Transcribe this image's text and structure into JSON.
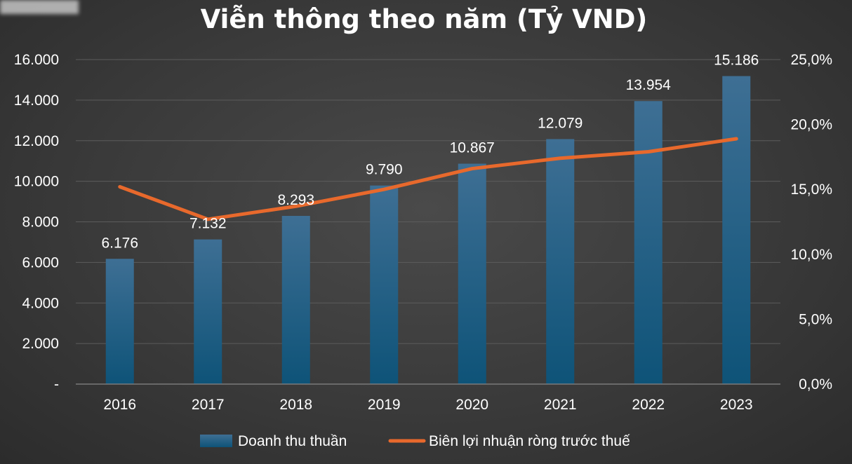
{
  "chart_data": {
    "type": "bar",
    "title": "Viễn thông theo năm (Tỷ VND)",
    "categories": [
      "2016",
      "2017",
      "2018",
      "2019",
      "2020",
      "2021",
      "2022",
      "2023"
    ],
    "series": [
      {
        "name": "Doanh thu thuần",
        "type": "bar",
        "axis": "left",
        "values": [
          6176,
          7132,
          8293,
          9790,
          10867,
          12079,
          13954,
          15186
        ],
        "labels": [
          "6.176",
          "7.132",
          "8.293",
          "9.790",
          "10.867",
          "12.079",
          "13.954",
          "15.186"
        ]
      },
      {
        "name": "Biên lợi nhuận ròng trước thuế",
        "type": "line",
        "axis": "right",
        "values": [
          15.2,
          12.7,
          13.7,
          15.0,
          16.6,
          17.4,
          17.9,
          18.9
        ]
      }
    ],
    "y_left": {
      "ylim": [
        0,
        16000
      ],
      "ticks": [
        0,
        2000,
        4000,
        6000,
        8000,
        10000,
        12000,
        14000,
        16000
      ],
      "tick_labels": [
        "-",
        "2.000",
        "4.000",
        "6.000",
        "8.000",
        "10.000",
        "12.000",
        "14.000",
        "16.000"
      ]
    },
    "y_right": {
      "ylim": [
        0,
        25
      ],
      "ticks": [
        0,
        5,
        10,
        15,
        20,
        25
      ],
      "tick_labels": [
        "0,0%",
        "5,0%",
        "10,0%",
        "15,0%",
        "20,0%",
        "25,0%"
      ]
    },
    "grid": true,
    "legend_position": "bottom",
    "colors": {
      "bar_top": "#3e6f94",
      "bar_bottom": "#0e5378",
      "line": "#e8692c",
      "grid": "#5c5c5c",
      "text": "#ffffff"
    }
  }
}
